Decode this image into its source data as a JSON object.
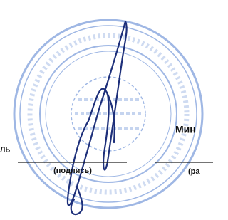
{
  "left_fragment": "ль",
  "right_fragment": "Мин",
  "signature_caption": "(подпись)",
  "right_caption": "(ра"
}
